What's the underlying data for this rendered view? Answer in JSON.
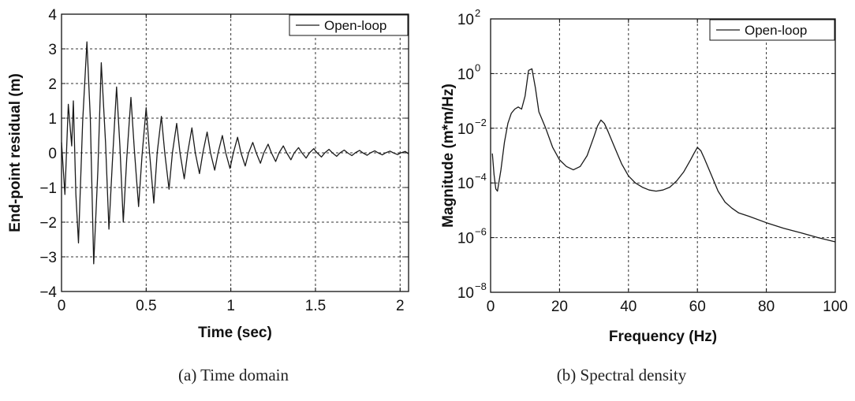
{
  "chart_data": [
    {
      "type": "line",
      "caption": "(a) Time domain",
      "xlabel": "Time (sec)",
      "ylabel": "End-point residual (m)",
      "xlim": [
        0,
        2.05
      ],
      "ylim": [
        -4,
        4
      ],
      "xticks": [
        0,
        0.5,
        1,
        1.5,
        2
      ],
      "xtick_labels": [
        "0",
        "0.5",
        "1",
        "1.5",
        "2"
      ],
      "yticks": [
        -4,
        -3,
        -2,
        -1,
        0,
        1,
        2,
        3,
        4
      ],
      "ytick_labels": [
        "−4",
        "−3",
        "−2",
        "−1",
        "0",
        "1",
        "2",
        "3",
        "4"
      ],
      "grid": true,
      "legend": "top-right",
      "series": [
        {
          "name": "Open-loop",
          "color": "#1a1a1a",
          "x": [
            0.0,
            0.02,
            0.04,
            0.06,
            0.07,
            0.085,
            0.1,
            0.125,
            0.15,
            0.17,
            0.19,
            0.215,
            0.235,
            0.26,
            0.28,
            0.3,
            0.325,
            0.345,
            0.365,
            0.385,
            0.41,
            0.43,
            0.455,
            0.475,
            0.5,
            0.52,
            0.545,
            0.565,
            0.59,
            0.61,
            0.635,
            0.655,
            0.68,
            0.7,
            0.725,
            0.745,
            0.77,
            0.79,
            0.815,
            0.835,
            0.86,
            0.88,
            0.905,
            0.925,
            0.95,
            0.97,
            0.995,
            1.015,
            1.04,
            1.06,
            1.085,
            1.105,
            1.13,
            1.15,
            1.175,
            1.195,
            1.22,
            1.24,
            1.265,
            1.285,
            1.31,
            1.33,
            1.355,
            1.375,
            1.4,
            1.42,
            1.445,
            1.465,
            1.49,
            1.51,
            1.535,
            1.555,
            1.58,
            1.6,
            1.625,
            1.645,
            1.67,
            1.69,
            1.715,
            1.735,
            1.76,
            1.78,
            1.805,
            1.825,
            1.85,
            1.87,
            1.895,
            1.915,
            1.94,
            1.96,
            1.985,
            2.005,
            2.03,
            2.05
          ],
          "y": [
            0.3,
            -1.2,
            1.4,
            0.2,
            1.5,
            -1.2,
            -2.6,
            0.9,
            3.2,
            1.0,
            -3.2,
            -0.5,
            2.6,
            0.3,
            -2.2,
            -0.3,
            1.9,
            0.2,
            -2.0,
            -0.2,
            1.6,
            0.1,
            -1.55,
            -0.1,
            1.3,
            0.0,
            -1.45,
            0.0,
            1.05,
            0.0,
            -1.05,
            0.0,
            0.85,
            0.0,
            -0.75,
            0.0,
            0.72,
            0.0,
            -0.6,
            0.0,
            0.6,
            0.0,
            -0.5,
            0.0,
            0.5,
            0.0,
            -0.45,
            0.0,
            0.45,
            0.0,
            -0.38,
            0.0,
            0.3,
            0.0,
            -0.3,
            0.0,
            0.25,
            0.0,
            -0.25,
            0.0,
            0.2,
            0.0,
            -0.2,
            0.0,
            0.15,
            0.0,
            -0.15,
            0.0,
            0.12,
            0.0,
            -0.12,
            0.0,
            0.1,
            0.0,
            -0.1,
            0.0,
            0.08,
            0.0,
            -0.08,
            0.0,
            0.07,
            0.0,
            -0.07,
            0.0,
            0.06,
            0.0,
            -0.06,
            0.0,
            0.05,
            0.0,
            -0.05,
            0.0,
            0.04,
            -0.03
          ]
        }
      ]
    },
    {
      "type": "line",
      "caption": "(b) Spectral density",
      "xlabel": "Frequency (Hz)",
      "ylabel": "Magnitude (m*m/Hz)",
      "xlim": [
        0,
        100
      ],
      "ylim": [
        1e-08,
        100
      ],
      "yscale": "log",
      "xticks": [
        0,
        20,
        40,
        60,
        80,
        100
      ],
      "xtick_labels": [
        "0",
        "20",
        "40",
        "60",
        "80",
        "100"
      ],
      "yticks": [
        1e-08,
        1e-06,
        0.0001,
        0.01,
        1,
        100
      ],
      "ytick_base": "10",
      "ytick_exponents": [
        "−8",
        "−6",
        "−4",
        "−2",
        "0",
        "2"
      ],
      "grid": true,
      "legend": "top-right",
      "series": [
        {
          "name": "Open-loop",
          "color": "#1a1a1a",
          "x": [
            0.5,
            1,
            1.5,
            2,
            3,
            4,
            5,
            6,
            7,
            8,
            9,
            10,
            11,
            12,
            13,
            14,
            16,
            18,
            20,
            22,
            24,
            26,
            28,
            30,
            31,
            32,
            33,
            34,
            36,
            38,
            40,
            42,
            44,
            46,
            48,
            50,
            52,
            54,
            56,
            58,
            59,
            60,
            61,
            62,
            64,
            66,
            68,
            70,
            72,
            75,
            80,
            85,
            90,
            95,
            100
          ],
          "y": [
            0.0012,
            0.0002,
            6e-05,
            5e-05,
            0.0003,
            0.003,
            0.015,
            0.035,
            0.05,
            0.06,
            0.05,
            0.15,
            1.3,
            1.5,
            0.3,
            0.04,
            0.01,
            0.002,
            0.0007,
            0.0004,
            0.0003,
            0.0004,
            0.001,
            0.005,
            0.012,
            0.02,
            0.015,
            0.008,
            0.002,
            0.0005,
            0.00018,
            0.0001,
            7e-05,
            5.5e-05,
            5e-05,
            5.5e-05,
            7e-05,
            0.00012,
            0.00025,
            0.0007,
            0.0012,
            0.002,
            0.0015,
            0.0008,
            0.0002,
            5e-05,
            2e-05,
            1.2e-05,
            8e-06,
            6e-06,
            3.5e-06,
            2.2e-06,
            1.5e-06,
            1e-06,
            7e-07
          ]
        }
      ]
    }
  ]
}
